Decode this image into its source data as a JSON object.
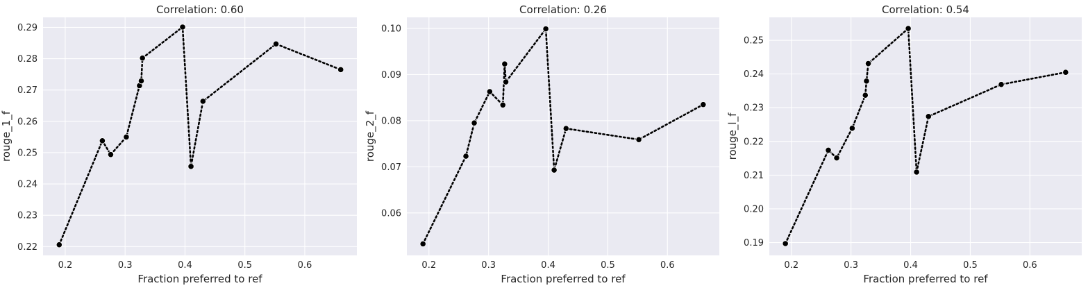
{
  "chart_data": [
    {
      "type": "line",
      "title": "Correlation: 0.60",
      "xlabel": "Fraction preferred to ref",
      "ylabel": "rouge_1_f",
      "xlim": [
        0.163,
        0.687
      ],
      "ylim": [
        0.2172,
        0.2932
      ],
      "xticks": [
        0.2,
        0.3,
        0.4,
        0.5,
        0.6
      ],
      "xtick_labels": [
        "0.2",
        "0.3",
        "0.4",
        "0.5",
        "0.6"
      ],
      "yticks": [
        0.22,
        0.23,
        0.24,
        0.25,
        0.26,
        0.27,
        0.28,
        0.29
      ],
      "ytick_labels": [
        "0.22",
        "0.23",
        "0.24",
        "0.25",
        "0.26",
        "0.27",
        "0.28",
        "0.29"
      ],
      "grid": true,
      "series": [
        {
          "x": [
            0.19,
            0.262,
            0.276,
            0.302,
            0.324,
            0.327,
            0.329,
            0.396,
            0.41,
            0.43,
            0.552,
            0.66
          ],
          "y": [
            0.2206,
            0.2538,
            0.2494,
            0.255,
            0.2714,
            0.2729,
            0.2802,
            0.2901,
            0.2456,
            0.2664,
            0.2847,
            0.2765
          ]
        }
      ]
    },
    {
      "type": "line",
      "title": "Correlation: 0.26",
      "xlabel": "Fraction preferred to ref",
      "ylabel": "rouge_2_f",
      "xlim": [
        0.163,
        0.687
      ],
      "ylim": [
        0.0508,
        0.1024
      ],
      "xticks": [
        0.2,
        0.3,
        0.4,
        0.5,
        0.6
      ],
      "xtick_labels": [
        "0.2",
        "0.3",
        "0.4",
        "0.5",
        "0.6"
      ],
      "yticks": [
        0.06,
        0.07,
        0.08,
        0.09,
        0.1
      ],
      "ytick_labels": [
        "0.06",
        "0.07",
        "0.08",
        "0.09",
        "0.10"
      ],
      "grid": true,
      "series": [
        {
          "x": [
            0.19,
            0.262,
            0.276,
            0.302,
            0.324,
            0.327,
            0.329,
            0.396,
            0.41,
            0.43,
            0.552,
            0.66
          ],
          "y": [
            0.0533,
            0.0723,
            0.0795,
            0.0863,
            0.0834,
            0.0923,
            0.0884,
            0.0999,
            0.0693,
            0.0783,
            0.0759,
            0.0835
          ]
        }
      ]
    },
    {
      "type": "line",
      "title": "Correlation: 0.54",
      "xlabel": "Fraction preferred to ref",
      "ylabel": "rouge_l_f",
      "xlim": [
        0.163,
        0.687
      ],
      "ylim": [
        0.1862,
        0.2568
      ],
      "xticks": [
        0.2,
        0.3,
        0.4,
        0.5,
        0.6
      ],
      "xtick_labels": [
        "0.2",
        "0.3",
        "0.4",
        "0.5",
        "0.6"
      ],
      "yticks": [
        0.19,
        0.2,
        0.21,
        0.22,
        0.23,
        0.24,
        0.25
      ],
      "ytick_labels": [
        "0.19",
        "0.20",
        "0.21",
        "0.22",
        "0.23",
        "0.24",
        "0.25"
      ],
      "grid": true,
      "series": [
        {
          "x": [
            0.19,
            0.262,
            0.276,
            0.302,
            0.324,
            0.326,
            0.329,
            0.396,
            0.41,
            0.43,
            0.552,
            0.66
          ],
          "y": [
            0.1897,
            0.2174,
            0.2151,
            0.2239,
            0.2337,
            0.2379,
            0.2431,
            0.2535,
            0.2109,
            0.2274,
            0.2369,
            0.2405
          ]
        }
      ]
    }
  ],
  "colors": {
    "background": "#EAEAF2",
    "grid": "#FFFFFF",
    "marker": "#000000",
    "text": "#262626"
  }
}
